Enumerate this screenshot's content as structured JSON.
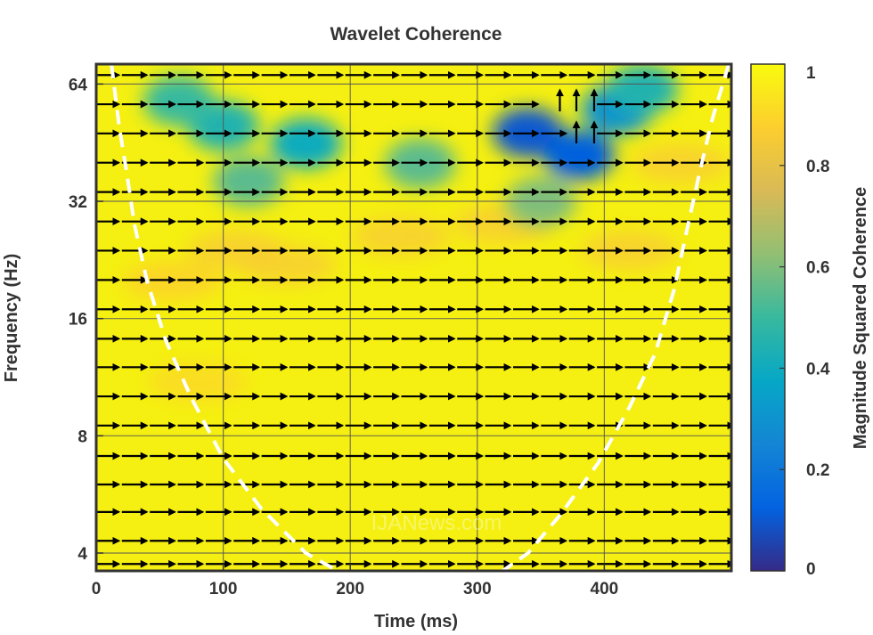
{
  "chart_data": {
    "type": "heatmap",
    "title": "Wavelet Coherence",
    "xlabel": "Time (ms)",
    "ylabel": "Frequency (Hz)",
    "colorbar_label": "Magnitude Squared Coherence",
    "xlim": [
      0,
      500
    ],
    "ylim": [
      3.6,
      72
    ],
    "yscale": "log2",
    "x_ticks": [
      0,
      100,
      200,
      300,
      400
    ],
    "x_tick_labels": [
      "0",
      "100",
      "200",
      "300",
      "400"
    ],
    "y_ticks": [
      4,
      8,
      16,
      32,
      64
    ],
    "y_tick_labels": [
      "4",
      "8",
      "16",
      "32",
      "64"
    ],
    "colorbar_range": [
      0,
      1
    ],
    "colorbar_ticks": [
      0,
      0.2,
      0.4,
      0.6,
      0.8,
      1
    ],
    "colorbar_tick_labels": [
      "0",
      "0.2",
      "0.4",
      "0.6",
      "0.8",
      "1"
    ],
    "grid": true,
    "colormap": "parula",
    "colors": {
      "frame": "#333333",
      "grid": "#555555",
      "cone_of_influence": "#ffffff",
      "arrow": "#000000"
    },
    "low_coherence_regions": [
      {
        "x": 100,
        "y": 50,
        "coherence": 0.45
      },
      {
        "x": 65,
        "y": 58,
        "coherence": 0.5
      },
      {
        "x": 165,
        "y": 45,
        "coherence": 0.4
      },
      {
        "x": 120,
        "y": 36,
        "coherence": 0.55
      },
      {
        "x": 255,
        "y": 40,
        "coherence": 0.55
      },
      {
        "x": 340,
        "y": 48,
        "coherence": 0.1
      },
      {
        "x": 380,
        "y": 42,
        "coherence": 0.12
      },
      {
        "x": 410,
        "y": 55,
        "coherence": 0.3
      },
      {
        "x": 430,
        "y": 62,
        "coherence": 0.45
      },
      {
        "x": 350,
        "y": 32,
        "coherence": 0.6
      }
    ],
    "phase_arrows": {
      "rows_frequency": [
        3.75,
        4.3,
        5.1,
        6,
        7.1,
        8.5,
        10.1,
        12,
        14.2,
        16.9,
        20.1,
        23.9,
        28.4,
        33.8,
        40.2,
        47.8,
        56.8,
        67.5
      ],
      "default_direction": "right",
      "up_arrows": [
        {
          "x": 365,
          "y": 58
        },
        {
          "x": 378,
          "y": 58
        },
        {
          "x": 392,
          "y": 58
        },
        {
          "x": 378,
          "y": 48
        },
        {
          "x": 392,
          "y": 48
        }
      ]
    },
    "cone_of_influence": {
      "left": [
        [
          12,
          72
        ],
        [
          18,
          50
        ],
        [
          24,
          38
        ],
        [
          30,
          28
        ],
        [
          40,
          20
        ],
        [
          55,
          14
        ],
        [
          75,
          10
        ],
        [
          100,
          7
        ],
        [
          130,
          5.2
        ],
        [
          165,
          4.0
        ],
        [
          190,
          3.6
        ]
      ],
      "right": [
        [
          498,
          72
        ],
        [
          485,
          52
        ],
        [
          475,
          38
        ],
        [
          465,
          27
        ],
        [
          455,
          19
        ],
        [
          440,
          13
        ],
        [
          420,
          9.5
        ],
        [
          395,
          6.8
        ],
        [
          365,
          5.0
        ],
        [
          340,
          4.0
        ],
        [
          320,
          3.6
        ]
      ]
    },
    "watermark": "IJANews.com"
  }
}
